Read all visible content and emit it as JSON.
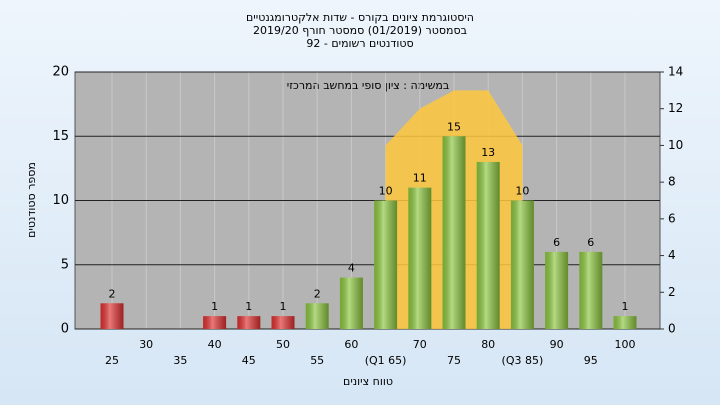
{
  "chart_data": {
    "type": "bar",
    "title": [
      "היסטוגרמת ציונים בקורס - שדות אלקטרומגנטיים",
      "בסמסטר  (01/2019)  סמסטר חורף 2019/20",
      "סטודנטים רשומים - 92"
    ],
    "annotation": "במשימה : ציון סופי במחשב המרכזי",
    "xlabel": "טווח ציונים",
    "ylabel": "מספר סטודנטים",
    "categories": [
      "25",
      "30",
      "35",
      "40",
      "45",
      "50",
      "55",
      "60",
      "(Q1 65)",
      "70",
      "75",
      "80",
      "(Q3 85)",
      "90",
      "95",
      "100"
    ],
    "values": [
      2,
      0,
      0,
      1,
      1,
      1,
      2,
      4,
      10,
      11,
      15,
      13,
      10,
      6,
      6,
      1
    ],
    "colors": [
      "#e03030",
      "#e03030",
      "#e03030",
      "#e03030",
      "#e03030",
      "#e03030",
      "#8cc63f",
      "#8cc63f",
      "#8cc63f",
      "#8cc63f",
      "#8cc63f",
      "#8cc63f",
      "#8cc63f",
      "#8cc63f",
      "#8cc63f",
      "#8cc63f"
    ],
    "area": {
      "values": [
        null,
        null,
        null,
        null,
        null,
        null,
        null,
        null,
        10,
        12,
        13,
        13,
        10,
        null,
        null,
        null
      ],
      "color": "#ffc83c",
      "axis": "y2"
    },
    "ylim": [
      0,
      20
    ],
    "yticks": [
      0,
      5,
      10,
      15,
      20
    ],
    "y2lim": [
      0,
      14
    ],
    "y2ticks": [
      0,
      2,
      4,
      6,
      8,
      10,
      12,
      14
    ],
    "grid": true
  }
}
